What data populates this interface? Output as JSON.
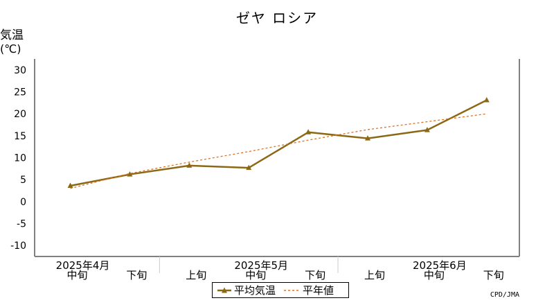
{
  "chart_data": {
    "type": "line",
    "title": "ゼヤ ロシア",
    "ylabel": "気温",
    "yunit": "(℃)",
    "ylim": [
      -12.5,
      32.5
    ],
    "yticks": [
      30,
      25,
      20,
      15,
      10,
      5,
      0,
      -5,
      -10
    ],
    "grid": true,
    "categories": [
      "中旬",
      "下旬",
      "上旬",
      "中旬",
      "下旬",
      "上旬",
      "中旬",
      "下旬"
    ],
    "months": [
      {
        "label": "2025年4月",
        "at": 0
      },
      {
        "label": "2025年5月",
        "at": 3
      },
      {
        "label": "2025年6月",
        "at": 6
      }
    ],
    "series": [
      {
        "name": "平均気温",
        "color": "#8B6914",
        "style": "solid",
        "marker": "triangle",
        "values": [
          3.6,
          6.2,
          8.2,
          7.7,
          15.8,
          14.4,
          16.3,
          23.1
        ]
      },
      {
        "name": "平年値",
        "color": "#E07020",
        "style": "dashed",
        "marker": "none",
        "values": [
          3.0,
          6.4,
          9.0,
          11.4,
          14.0,
          16.4,
          18.2,
          20.0
        ]
      }
    ],
    "legend_position": "bottom-center"
  },
  "credit": "CPD/JMA"
}
